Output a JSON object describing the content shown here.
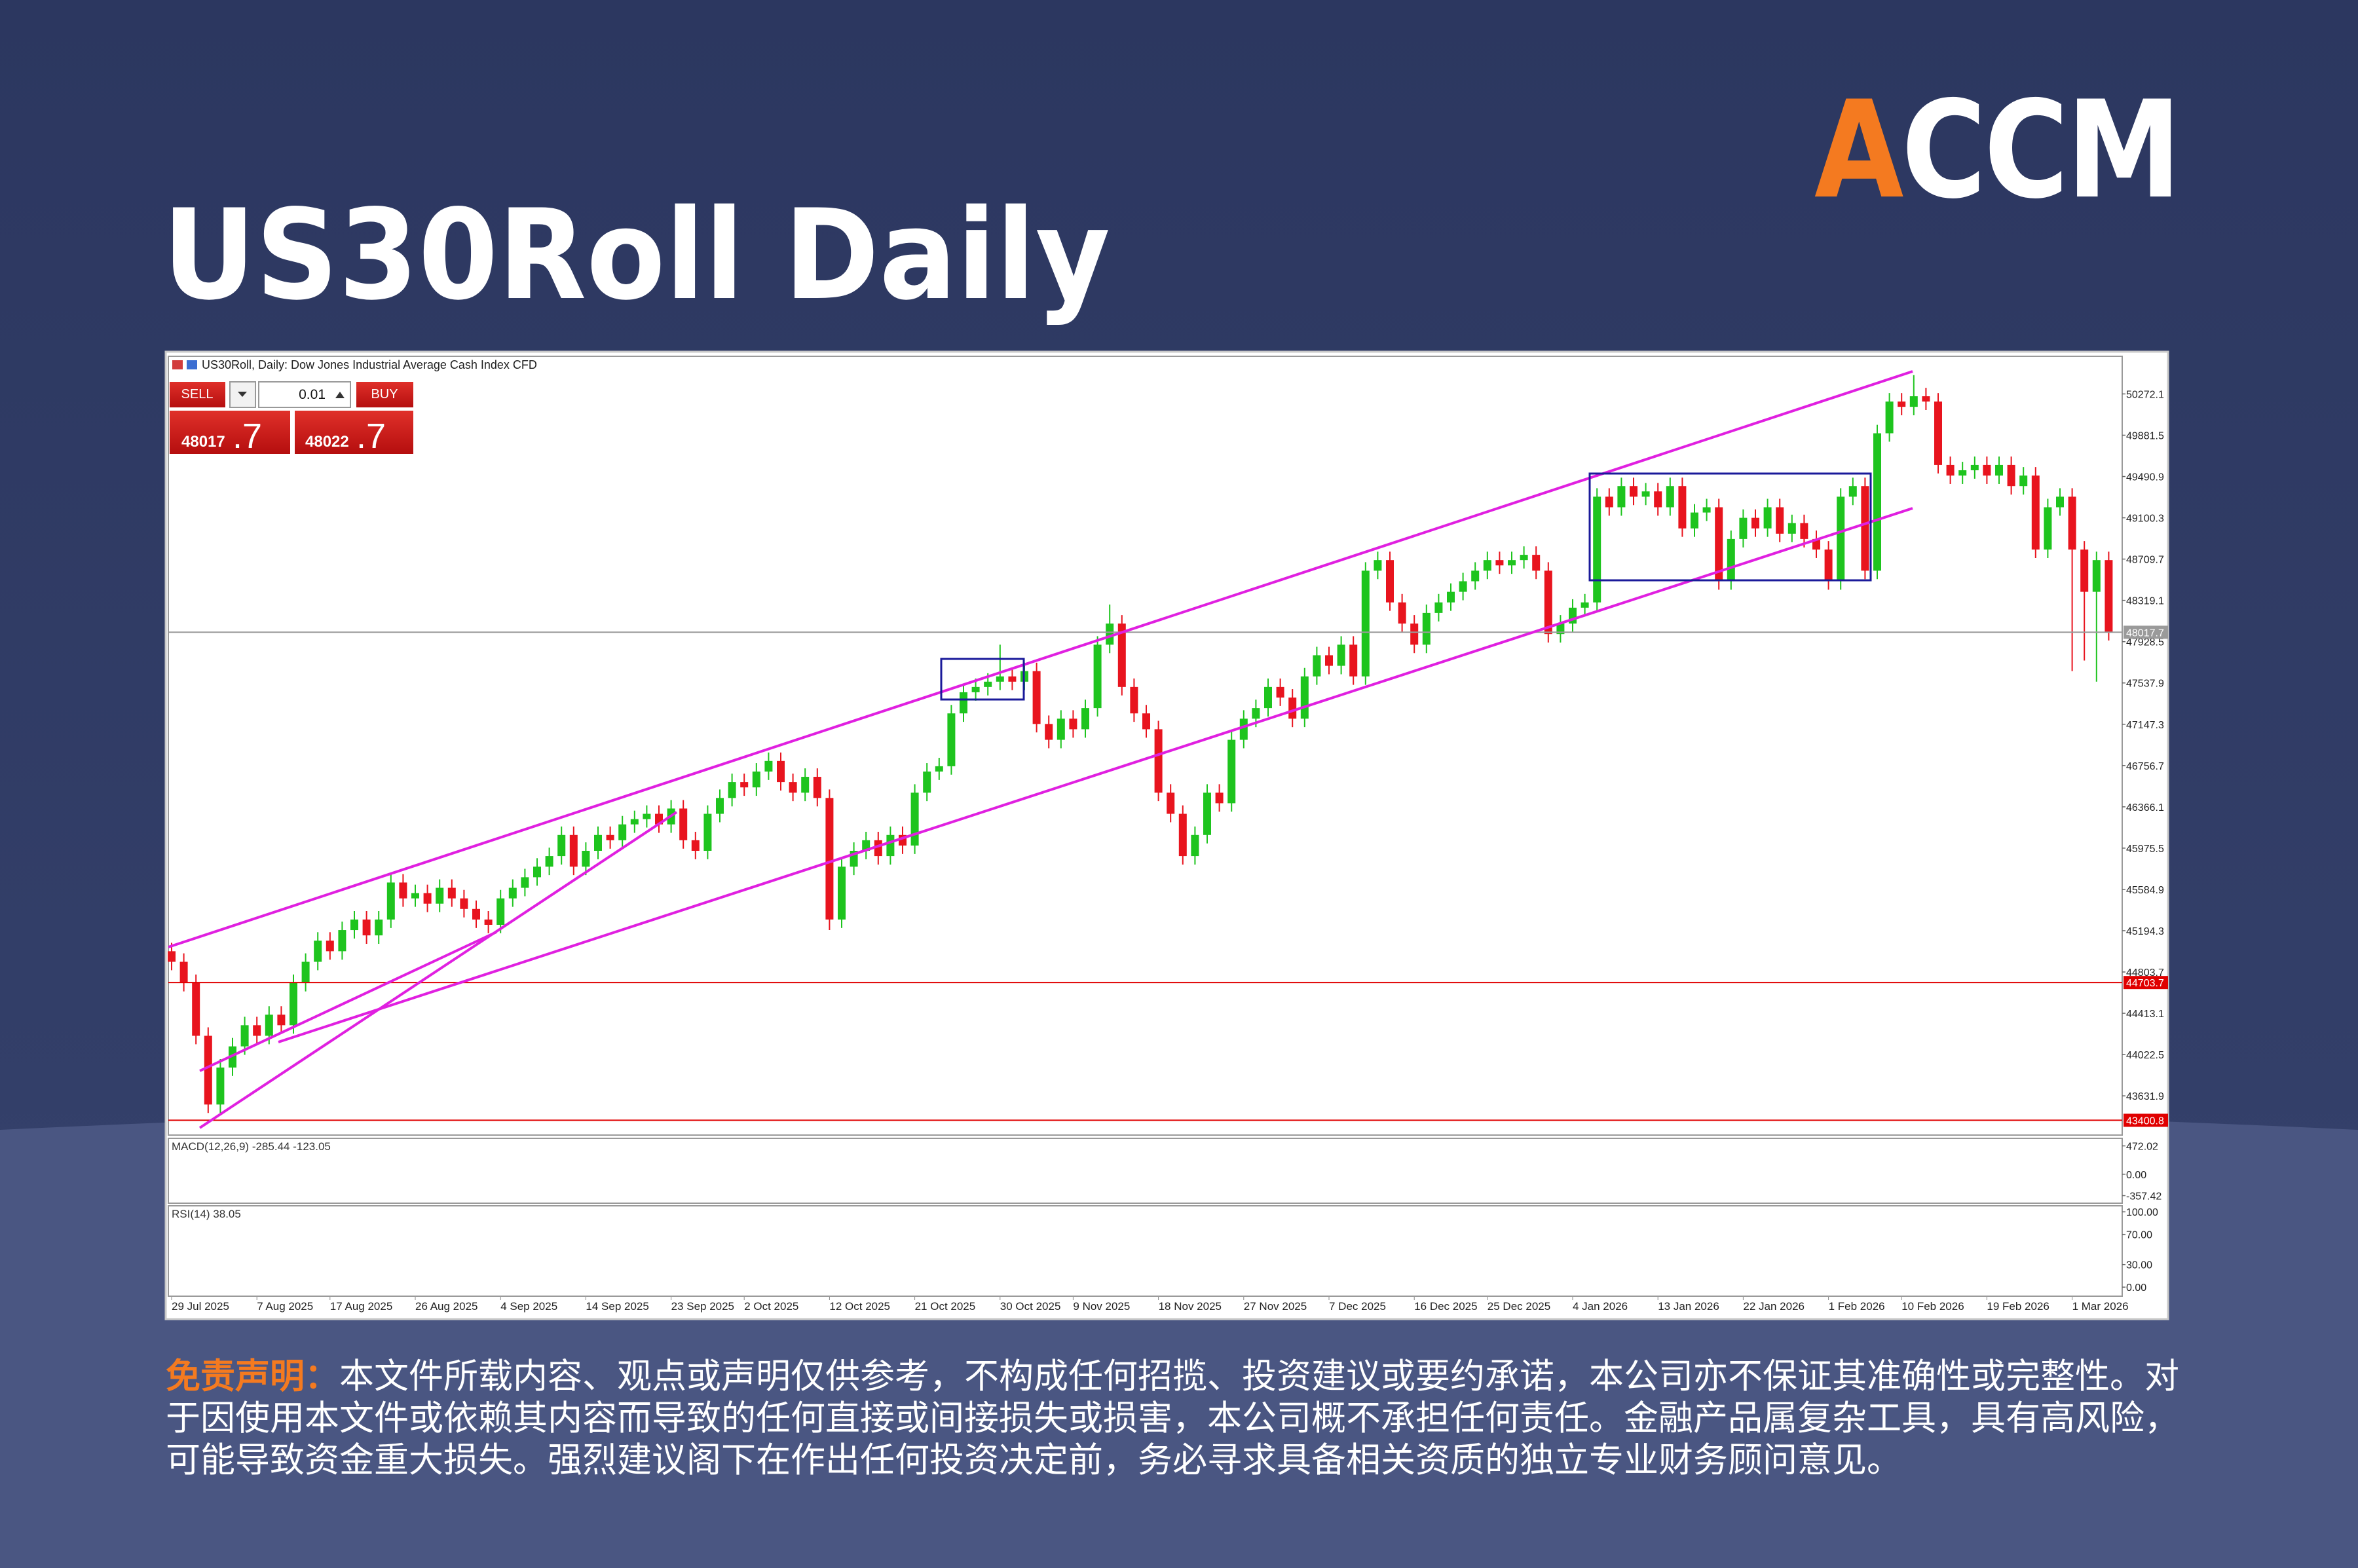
{
  "header": {
    "title": "US30Roll Daily",
    "logo": "ACCM"
  },
  "trade_panel": {
    "sell": "SELL",
    "lot": "0.01",
    "buy": "BUY",
    "bid": "48017",
    "bid_fraction": ".7",
    "ask": "48022",
    "ask_fraction": ".7"
  },
  "disclaimer": {
    "label": "免责声明：",
    "text": "本文件所载内容、观点或声明仅供参考，不构成任何招揽、投资建议或要约承诺，本公司亦不保证其准确性或完整性。对于因使用本文件或依赖其内容而导致的任何直接或间接损失或损害，本公司概不承担任何责任。金融产品属复杂工具，具有高风险，可能导致资金重大损失。强烈建议阁下在作出任何投资决定前，务必寻求具备相关资质的独立专业财务顾问意见。"
  },
  "chart_data": [
    {
      "type": "candlestick",
      "title": "US30Roll, Daily: Dow Jones Industrial Average Cash Index CFD",
      "categories": [
        "29 Jul 2025",
        null,
        null,
        null,
        null,
        null,
        null,
        "7 Aug 2025",
        null,
        null,
        null,
        null,
        null,
        "17 Aug 2025",
        null,
        null,
        null,
        null,
        null,
        null,
        "26 Aug 2025",
        null,
        null,
        null,
        null,
        null,
        null,
        "4 Sep 2025",
        null,
        null,
        null,
        null,
        null,
        null,
        "14 Sep 2025",
        null,
        null,
        null,
        null,
        null,
        null,
        "23 Sep 2025",
        null,
        null,
        null,
        null,
        null,
        "2 Oct 2025",
        null,
        null,
        null,
        null,
        null,
        null,
        "12 Oct 2025",
        null,
        null,
        null,
        null,
        null,
        null,
        "21 Oct 2025",
        null,
        null,
        null,
        null,
        null,
        null,
        "30 Oct 2025",
        null,
        null,
        null,
        null,
        null,
        "9 Nov 2025",
        null,
        null,
        null,
        null,
        null,
        null,
        "18 Nov 2025",
        null,
        null,
        null,
        null,
        null,
        null,
        "27 Nov 2025",
        null,
        null,
        null,
        null,
        null,
        null,
        "7 Dec 2025",
        null,
        null,
        null,
        null,
        null,
        null,
        "16 Dec 2025",
        null,
        null,
        null,
        null,
        null,
        "25 Dec 2025",
        null,
        null,
        null,
        null,
        null,
        null,
        "4 Jan 2026",
        null,
        null,
        null,
        null,
        null,
        null,
        "13 Jan 2026",
        null,
        null,
        null,
        null,
        null,
        null,
        "22 Jan 2026",
        null,
        null,
        null,
        null,
        null,
        null,
        "1 Feb 2026",
        null,
        null,
        null,
        null,
        null,
        "10 Feb 2026",
        null,
        null,
        null,
        null,
        null,
        null,
        "19 Feb 2026",
        null,
        null,
        null,
        null,
        null,
        null,
        "1 Mar 2026",
        null,
        null,
        null
      ],
      "open": [
        45000,
        44900,
        44700,
        44200,
        43550,
        43900,
        44100,
        44300,
        44200,
        44400,
        44300,
        44700,
        44900,
        45100,
        45000,
        45200,
        45300,
        45150,
        45300,
        45650,
        45500,
        45550,
        45450,
        45600,
        45500,
        45400,
        45300,
        45250,
        45500,
        45600,
        45700,
        45800,
        45900,
        46100,
        45800,
        45950,
        46100,
        46050,
        46200,
        46250,
        46300,
        46200,
        46350,
        46050,
        45950,
        46300,
        46450,
        46600,
        46550,
        46700,
        46800,
        46600,
        46500,
        46650,
        46450,
        45300,
        45800,
        45950,
        46050,
        45900,
        46100,
        46000,
        46500,
        46700,
        46750,
        47250,
        47450,
        47500,
        47550,
        47600,
        47550,
        47650,
        47150,
        47000,
        47200,
        47100,
        47300,
        47900,
        48100,
        47500,
        47250,
        47100,
        46500,
        46300,
        45900,
        46100,
        46500,
        46400,
        47000,
        47200,
        47300,
        47500,
        47400,
        47200,
        47600,
        47800,
        47700,
        47900,
        47600,
        48600,
        48700,
        48300,
        48100,
        47900,
        48200,
        48300,
        48400,
        48500,
        48600,
        48700,
        48650,
        48700,
        48750,
        48600,
        48000,
        48100,
        48250,
        48300,
        49300,
        49200,
        49400,
        49300,
        49350,
        49200,
        49400,
        49000,
        49150,
        49200,
        48500,
        48900,
        49100,
        49000,
        49200,
        48950,
        49050,
        48900,
        48800,
        48500,
        49300,
        49400,
        48600,
        49900,
        50200,
        50150,
        50250,
        50200,
        49600,
        49500,
        49550,
        49600,
        49500,
        49600,
        49400,
        49500,
        48800,
        49200,
        49300,
        48800,
        48400,
        48700
      ],
      "high": [
        45080,
        44980,
        44780,
        44280,
        43980,
        44180,
        44380,
        44380,
        44480,
        44480,
        44780,
        44980,
        45180,
        45180,
        45280,
        45380,
        45380,
        45380,
        45730,
        45730,
        45630,
        45630,
        45680,
        45680,
        45580,
        45480,
        45380,
        45580,
        45680,
        45780,
        45880,
        45980,
        46180,
        46180,
        46030,
        46180,
        46180,
        46280,
        46330,
        46380,
        46380,
        46430,
        46430,
        46130,
        46380,
        46530,
        46680,
        46680,
        46780,
        46880,
        46880,
        46680,
        46730,
        46730,
        46530,
        45880,
        46030,
        46130,
        46130,
        46180,
        46180,
        46580,
        46780,
        46830,
        47330,
        47530,
        47580,
        47630,
        47900,
        47680,
        47730,
        47730,
        47230,
        47280,
        47280,
        47380,
        47980,
        48280,
        48180,
        47580,
        47330,
        47180,
        46580,
        46380,
        46180,
        46580,
        46580,
        47080,
        47280,
        47380,
        47580,
        47580,
        47480,
        47680,
        47880,
        47880,
        47980,
        47980,
        48680,
        48780,
        48780,
        48380,
        48180,
        48280,
        48380,
        48480,
        48580,
        48680,
        48780,
        48780,
        48780,
        48830,
        48830,
        48680,
        48180,
        48330,
        48380,
        49380,
        49380,
        49480,
        49480,
        49430,
        49430,
        49480,
        49480,
        49230,
        49280,
        49280,
        48980,
        49180,
        49180,
        49280,
        49280,
        49130,
        49130,
        48980,
        48880,
        49380,
        49480,
        49480,
        49980,
        50280,
        50280,
        50450,
        50330,
        50280,
        49680,
        49630,
        49680,
        49680,
        49680,
        49680,
        49580,
        49580,
        49280,
        49380,
        49380,
        48880,
        48780,
        48780
      ],
      "low": [
        44820,
        44620,
        44120,
        43470,
        43470,
        43820,
        44020,
        44120,
        44120,
        44220,
        44220,
        44620,
        44820,
        44920,
        44920,
        45120,
        45070,
        45070,
        45220,
        45420,
        45420,
        45370,
        45370,
        45420,
        45320,
        45220,
        45170,
        45170,
        45420,
        45520,
        45620,
        45720,
        45820,
        45720,
        45720,
        45870,
        45970,
        45970,
        46120,
        46170,
        46120,
        46120,
        45970,
        45870,
        45870,
        46220,
        46370,
        46470,
        46470,
        46620,
        46520,
        46420,
        46420,
        46370,
        45200,
        45220,
        45720,
        45870,
        45820,
        45820,
        45920,
        45920,
        46420,
        46620,
        46670,
        47170,
        47370,
        47420,
        47470,
        47470,
        47470,
        47070,
        46920,
        46920,
        47020,
        47020,
        47220,
        47820,
        47420,
        47170,
        47020,
        46420,
        46220,
        45820,
        45820,
        46020,
        46320,
        46320,
        46920,
        47120,
        47220,
        47320,
        47120,
        47120,
        47520,
        47620,
        47620,
        47520,
        47520,
        48520,
        48220,
        48020,
        47820,
        47820,
        48120,
        48220,
        48320,
        48420,
        48520,
        48570,
        48570,
        48620,
        48520,
        47920,
        47920,
        48020,
        48170,
        48220,
        49120,
        49120,
        49220,
        49220,
        49120,
        49120,
        48920,
        48920,
        49070,
        48420,
        48420,
        48820,
        48920,
        48920,
        48870,
        48870,
        48820,
        48720,
        48420,
        48420,
        49220,
        48520,
        48520,
        49820,
        50070,
        50070,
        50120,
        49520,
        49420,
        49420,
        49470,
        49420,
        49420,
        49320,
        49320,
        48720,
        48720,
        49120,
        47650,
        47750,
        47550,
        47940
      ],
      "close": [
        44900,
        44700,
        44200,
        43550,
        43900,
        44100,
        44300,
        44200,
        44400,
        44300,
        44700,
        44900,
        45100,
        45000,
        45200,
        45300,
        45150,
        45300,
        45650,
        45500,
        45550,
        45450,
        45600,
        45500,
        45400,
        45300,
        45250,
        45500,
        45600,
        45700,
        45800,
        45900,
        46100,
        45800,
        45950,
        46100,
        46050,
        46200,
        46250,
        46300,
        46200,
        46350,
        46050,
        45950,
        46300,
        46450,
        46600,
        46550,
        46700,
        46800,
        46600,
        46500,
        46650,
        46450,
        45300,
        45800,
        45950,
        46050,
        45900,
        46100,
        46000,
        46500,
        46700,
        46750,
        47250,
        47450,
        47500,
        47550,
        47600,
        47550,
        47650,
        47150,
        47000,
        47200,
        47100,
        47300,
        47900,
        48100,
        47500,
        47250,
        47100,
        46500,
        46300,
        45900,
        46100,
        46500,
        46400,
        47000,
        47200,
        47300,
        47500,
        47400,
        47200,
        47600,
        47800,
        47700,
        47900,
        47600,
        48600,
        48700,
        48300,
        48100,
        47900,
        48200,
        48300,
        48400,
        48500,
        48600,
        48700,
        48650,
        48700,
        48750,
        48600,
        48000,
        48100,
        48250,
        48300,
        49300,
        49200,
        49400,
        49300,
        49350,
        49200,
        49400,
        49000,
        49150,
        49200,
        48500,
        48900,
        49100,
        49000,
        49200,
        48950,
        49050,
        48900,
        48800,
        48500,
        49300,
        49400,
        48600,
        49900,
        50200,
        50150,
        50250,
        50200,
        49600,
        49500,
        49550,
        49600,
        49500,
        49600,
        49400,
        49500,
        48800,
        49200,
        49300,
        48800,
        48400,
        48700,
        48017.7
      ],
      "up_color": "#1ec41e",
      "down_color": "#e8141e",
      "ylim": [
        43261,
        50628
      ],
      "yticks": [
        50272.1,
        49881.5,
        49490.9,
        49100.3,
        48709.7,
        48319.1,
        47928.5,
        47537.9,
        47147.3,
        46756.7,
        46366.1,
        45975.5,
        45584.9,
        45194.3,
        44803.7,
        44413.1,
        44022.5,
        43631.9
      ],
      "hlines": [
        {
          "value": 48017.7,
          "color": "#9a9a9a"
        },
        {
          "value": 44703.7,
          "color": "#e00000"
        },
        {
          "value": 43400.8,
          "color": "#e00000"
        }
      ]
    },
    {
      "type": "macd",
      "title": "MACD(12,26,9) -285.44 -123.05",
      "ylim": [
        -483,
        598
      ],
      "yticks": [
        472.02,
        {
          "value": 0,
          "label": "0.00"
        },
        -357.42
      ]
    },
    {
      "type": "rsi",
      "title": "RSI(14) 38.05",
      "ylim": [
        -12,
        108
      ],
      "yticks": [
        {
          "value": 100,
          "label": "100.00"
        },
        {
          "value": 70,
          "label": "70.00"
        },
        {
          "value": 30,
          "label": "30.00"
        },
        {
          "value": 0,
          "label": "0.00"
        }
      ]
    }
  ]
}
